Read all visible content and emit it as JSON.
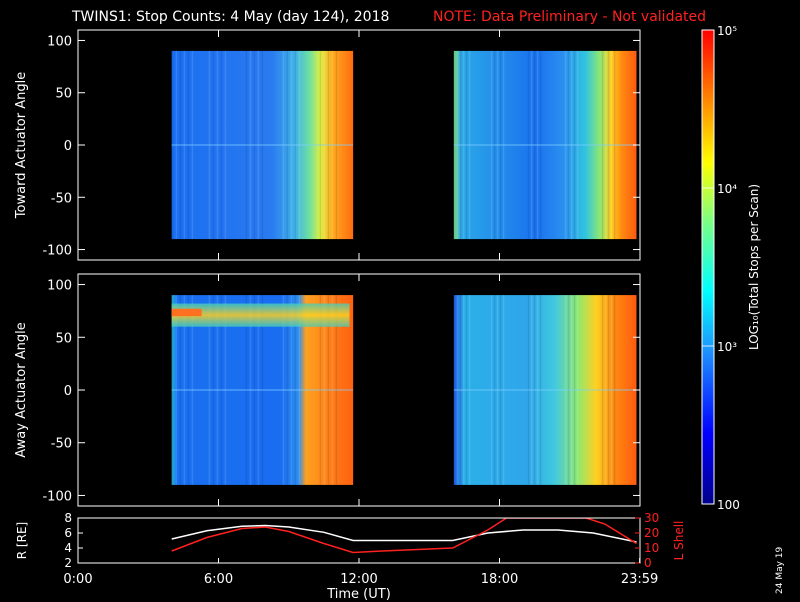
{
  "title": "TWINS1: Stop Counts:  4 May (day 124), 2018",
  "note": "NOTE: Data Preliminary - Not validated",
  "date_stamp": "24 May 19",
  "colors": {
    "background": "#000000",
    "note": "#ff2020",
    "r_line": "#ffffff",
    "lshell_line": "#ff2020"
  },
  "chart_data": [
    {
      "type": "heatmap",
      "name": "toward",
      "ylabel": "Toward Actuator Angle",
      "ylim": [
        -110,
        110
      ],
      "yticks": [
        -100,
        -50,
        0,
        50,
        100
      ],
      "xlim": [
        0,
        24
      ],
      "data_intervals_hours": [
        [
          4.0,
          11.75
        ],
        [
          16.05,
          23.85
        ]
      ],
      "angle_range": [
        -90,
        90
      ]
    },
    {
      "type": "heatmap",
      "name": "away",
      "ylabel": "Away Actuator Angle",
      "ylim": [
        -110,
        110
      ],
      "yticks": [
        -100,
        -50,
        0,
        50,
        100
      ],
      "xlim": [
        0,
        24
      ],
      "data_intervals_hours": [
        [
          4.0,
          11.75
        ],
        [
          16.05,
          23.85
        ]
      ],
      "angle_range": [
        -90,
        90
      ]
    },
    {
      "type": "line",
      "name": "orbit",
      "ylabel": "R [RE]",
      "ylabel_right": "L Shell",
      "xlabel": "Time (UT)",
      "xlim": [
        0,
        24
      ],
      "xticks": [
        0,
        6,
        12,
        18,
        23.983
      ],
      "xticklabels": [
        "0:00",
        "6:00",
        "12:00",
        "18:00",
        "23:59"
      ],
      "ylim": [
        2,
        8
      ],
      "yticks": [
        2,
        4,
        6,
        8
      ],
      "ylim_right": [
        0,
        30
      ],
      "yticks_right": [
        0,
        10,
        20,
        30
      ],
      "series": [
        {
          "axis": "left",
          "x": [
            4.0,
            5.5,
            7.0,
            8.0,
            9.0,
            10.5,
            11.75,
            13.0,
            16.0,
            17.5,
            19.0,
            20.5,
            22.0,
            23.85
          ],
          "y": [
            5.2,
            6.3,
            6.9,
            7.0,
            6.8,
            6.1,
            5.0,
            5.0,
            5.0,
            6.0,
            6.4,
            6.4,
            6.0,
            4.8
          ]
        },
        {
          "axis": "right",
          "x": [
            4.0,
            5.5,
            7.0,
            8.0,
            9.0,
            10.5,
            11.75,
            13.0,
            16.0,
            17.5,
            18.3,
            21.7,
            22.5,
            23.85
          ],
          "y": [
            8,
            17,
            23,
            24,
            21,
            13,
            7,
            8,
            10,
            22,
            30,
            30,
            26,
            13
          ]
        }
      ]
    },
    {
      "type": "heatmap",
      "name": "colorbar",
      "scale": "log",
      "range": [
        100,
        100000
      ],
      "ticks": [
        "100",
        "10³",
        "10⁴",
        "10⁵"
      ],
      "label": "LOG₁₀(Total Stops per Scan)"
    }
  ]
}
